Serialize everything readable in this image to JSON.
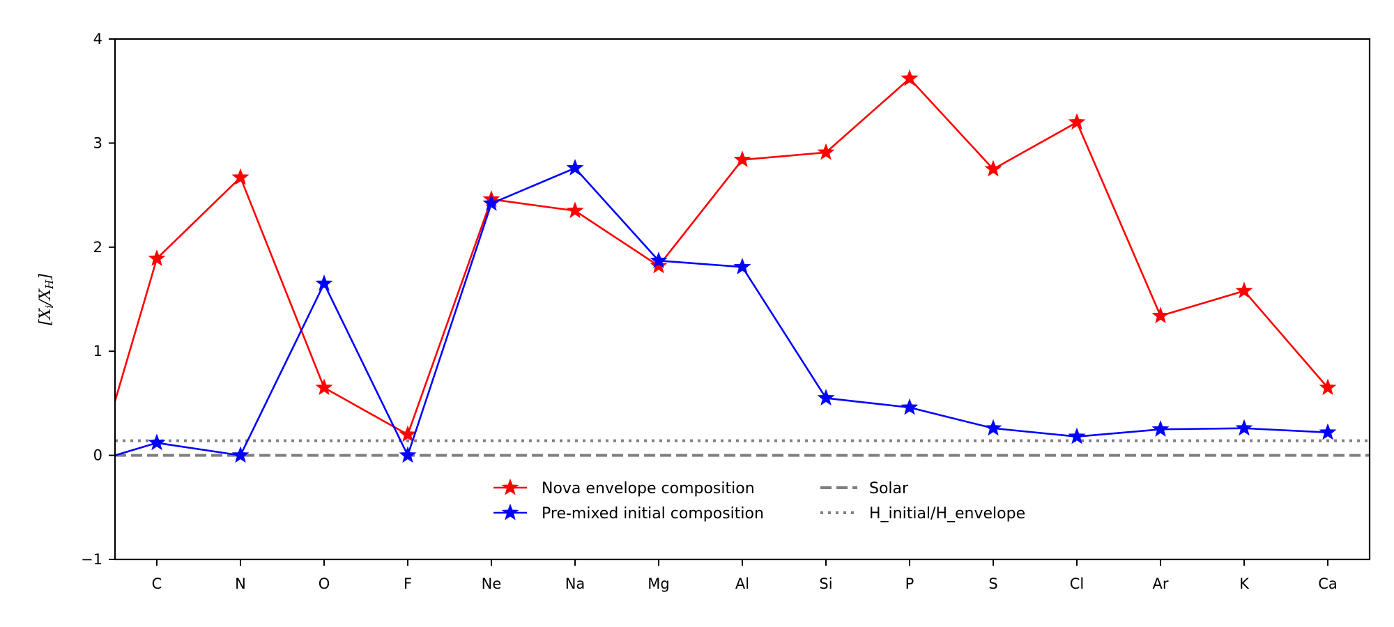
{
  "chart_data": {
    "type": "line",
    "title": "",
    "xlabel": "",
    "ylabel": "[X_i/X_H]",
    "ylabel_display": "[Xi/XH]",
    "ylim": [
      -1,
      4
    ],
    "yticks": [
      "−1",
      "0",
      "1",
      "2",
      "3",
      "4"
    ],
    "ytick_values": [
      -1,
      0,
      1,
      2,
      3,
      4
    ],
    "categories": [
      "C",
      "N",
      "O",
      "F",
      "Ne",
      "Na",
      "Mg",
      "Al",
      "Si",
      "P",
      "S",
      "Cl",
      "Ar",
      "K",
      "Ca"
    ],
    "series": [
      {
        "name": "Nova envelope composition",
        "color": "#ff0000",
        "marker": "star",
        "start_value": 0.52,
        "values": [
          1.89,
          2.67,
          0.65,
          0.2,
          2.46,
          2.35,
          1.82,
          2.84,
          2.91,
          3.62,
          2.75,
          3.2,
          1.34,
          1.58,
          0.65
        ]
      },
      {
        "name": "Pre-mixed initial composition",
        "color": "#0000ff",
        "marker": "star",
        "start_value": 0.0,
        "values": [
          0.12,
          0.0,
          1.65,
          0.0,
          2.42,
          2.76,
          1.87,
          1.81,
          0.55,
          0.46,
          0.26,
          0.18,
          0.25,
          0.26,
          0.22
        ]
      }
    ],
    "reference_lines": [
      {
        "name": "Solar",
        "value": 0.0,
        "style": "dashed",
        "color": "#808080"
      },
      {
        "name": "H_initial/H_envelope",
        "value": 0.14,
        "style": "dotted",
        "color": "#808080"
      }
    ],
    "legend_position": "lower-center",
    "grid": false
  }
}
